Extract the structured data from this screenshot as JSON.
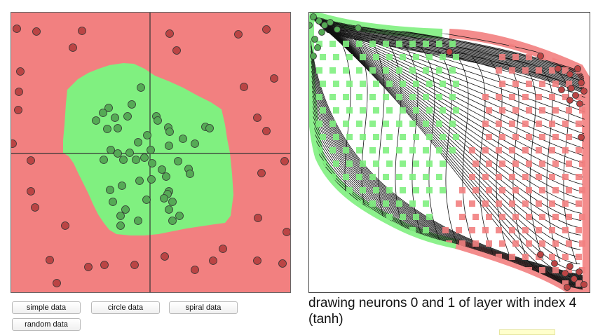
{
  "buttons": {
    "simple": "simple data",
    "circle": "circle data",
    "spiral": "spiral data",
    "random": "random data"
  },
  "caption": "drawing neurons 0 and 1 of layer with index 4 (tanh)",
  "colors": {
    "negative_region": "#f28080",
    "positive_region": "#80f080",
    "point_fill": "#55aa55",
    "point_fill_red": "#bb4444",
    "point_stroke": "#333333",
    "grid_line": "#000000"
  }
}
